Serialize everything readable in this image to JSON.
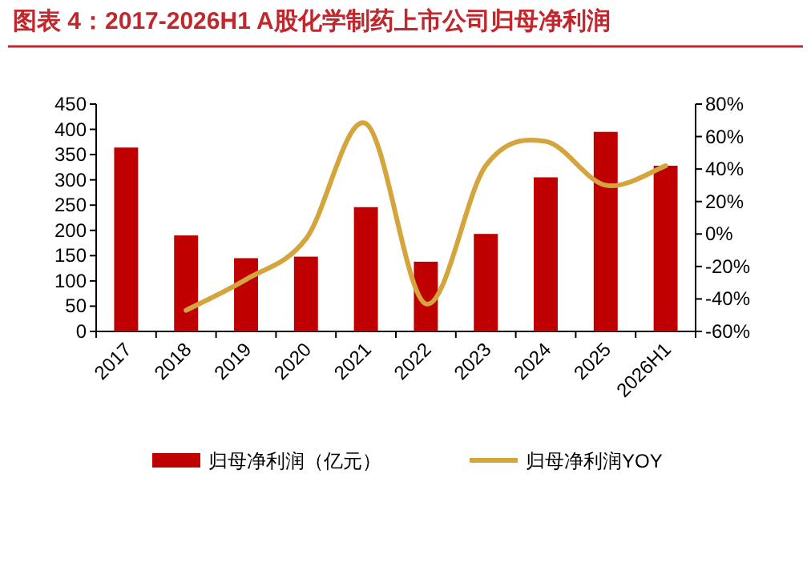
{
  "chart_data": {
    "type": "bar",
    "title": "图表 4：2017-2026H1 A股化学制药上市公司归母净利润",
    "categories": [
      "2017",
      "2018",
      "2019",
      "2020",
      "2021",
      "2022",
      "2023",
      "2024",
      "2025",
      "2026H1"
    ],
    "series": [
      {
        "name": "归母净利润（亿元）",
        "color": "#c00000",
        "values": [
          364,
          190,
          145,
          148,
          246,
          138,
          193,
          305,
          395,
          328
        ]
      },
      {
        "name": "归母净利润YOY",
        "type": "line",
        "axis": "y2",
        "color": "#d4a53c",
        "values": [
          null,
          -47,
          -28,
          -3,
          68,
          -43,
          42,
          57,
          30,
          42
        ]
      }
    ],
    "ylim": [
      0,
      450
    ],
    "yticks": [
      0,
      50,
      100,
      150,
      200,
      250,
      300,
      350,
      400,
      450
    ],
    "y2lim": [
      -60,
      80
    ],
    "y2ticks": [
      {
        "value": -60,
        "label": "-60%"
      },
      {
        "value": -40,
        "label": "-40%"
      },
      {
        "value": -20,
        "label": "-20%"
      },
      {
        "value": 0,
        "label": "0%"
      },
      {
        "value": 20,
        "label": "20%"
      },
      {
        "value": 40,
        "label": "40%"
      },
      {
        "value": 60,
        "label": "60%"
      },
      {
        "value": 80,
        "label": "80%"
      }
    ],
    "legend": "bottom",
    "grid": false
  }
}
